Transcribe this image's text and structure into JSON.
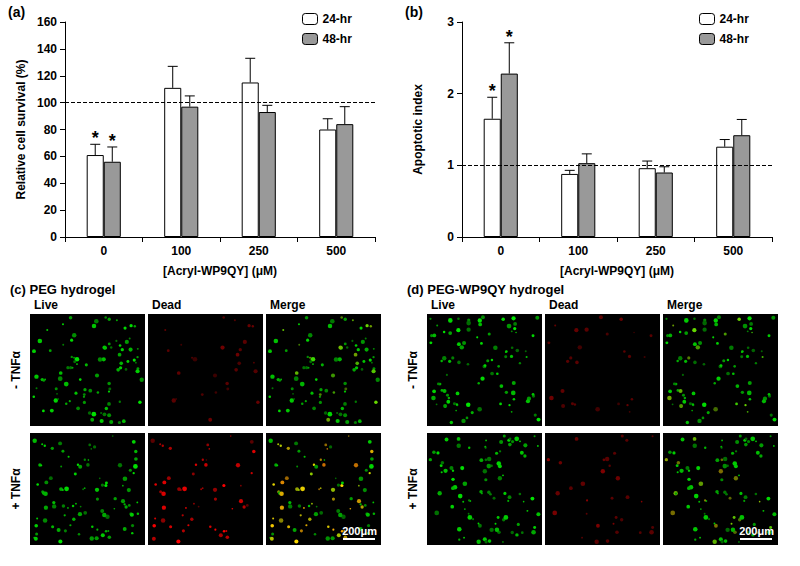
{
  "chart_data": [
    {
      "type": "bar",
      "title": "(a)",
      "x_label": "[Acryl-WP9QY] (μM)",
      "y_label": "Relative cell survival (%)",
      "categories": [
        "0",
        "100",
        "250",
        "500"
      ],
      "series": [
        {
          "name": "24-hr",
          "color": "#ffffff",
          "values": [
            61,
            111,
            115,
            80
          ],
          "errors": [
            8,
            16,
            18,
            8
          ]
        },
        {
          "name": "48-hr",
          "color": "#999999",
          "values": [
            56,
            97,
            93,
            84
          ],
          "errors": [
            11,
            8,
            5,
            13
          ]
        }
      ],
      "ylim": [
        0,
        160
      ],
      "yticks": [
        0,
        20,
        40,
        60,
        80,
        100,
        120,
        140,
        160
      ],
      "reference_line": 100,
      "annotations": [
        {
          "text": "*",
          "category": "0",
          "series": "24-hr"
        },
        {
          "text": "*",
          "category": "0",
          "series": "48-hr"
        }
      ],
      "legend": "top-right",
      "grid": false
    },
    {
      "type": "bar",
      "title": "(b)",
      "x_label": "[Acryl-WP9QY] (μM)",
      "y_label": "Apoptotic index",
      "categories": [
        "0",
        "100",
        "250",
        "500"
      ],
      "series": [
        {
          "name": "24-hr",
          "color": "#ffffff",
          "values": [
            1.65,
            0.88,
            0.96,
            1.26
          ],
          "errors": [
            0.3,
            0.05,
            0.1,
            0.1
          ]
        },
        {
          "name": "48-hr",
          "color": "#999999",
          "values": [
            2.28,
            1.03,
            0.9,
            1.42
          ],
          "errors": [
            0.43,
            0.13,
            0.08,
            0.22
          ]
        }
      ],
      "ylim": [
        0,
        3
      ],
      "yticks": [
        0,
        1,
        2,
        3
      ],
      "reference_line": 1,
      "annotations": [
        {
          "text": "*",
          "category": "0",
          "series": "24-hr"
        },
        {
          "text": "*",
          "category": "0",
          "series": "48-hr"
        }
      ],
      "legend": "top-right",
      "grid": false
    }
  ],
  "panels": [
    {
      "label": "(c)",
      "title": "PEG hydrogel",
      "columns": [
        "Live",
        "Dead",
        "Merge"
      ],
      "rows": [
        "- TNFα",
        "+ TNFα"
      ],
      "scale_bar": "200μm"
    },
    {
      "label": "(d)",
      "title": "PEG-WP9QY hydrogel",
      "columns": [
        "Live",
        "Dead",
        "Merge"
      ],
      "rows": [
        "- TNFα",
        "+ TNFα"
      ],
      "scale_bar": "200μm"
    }
  ]
}
